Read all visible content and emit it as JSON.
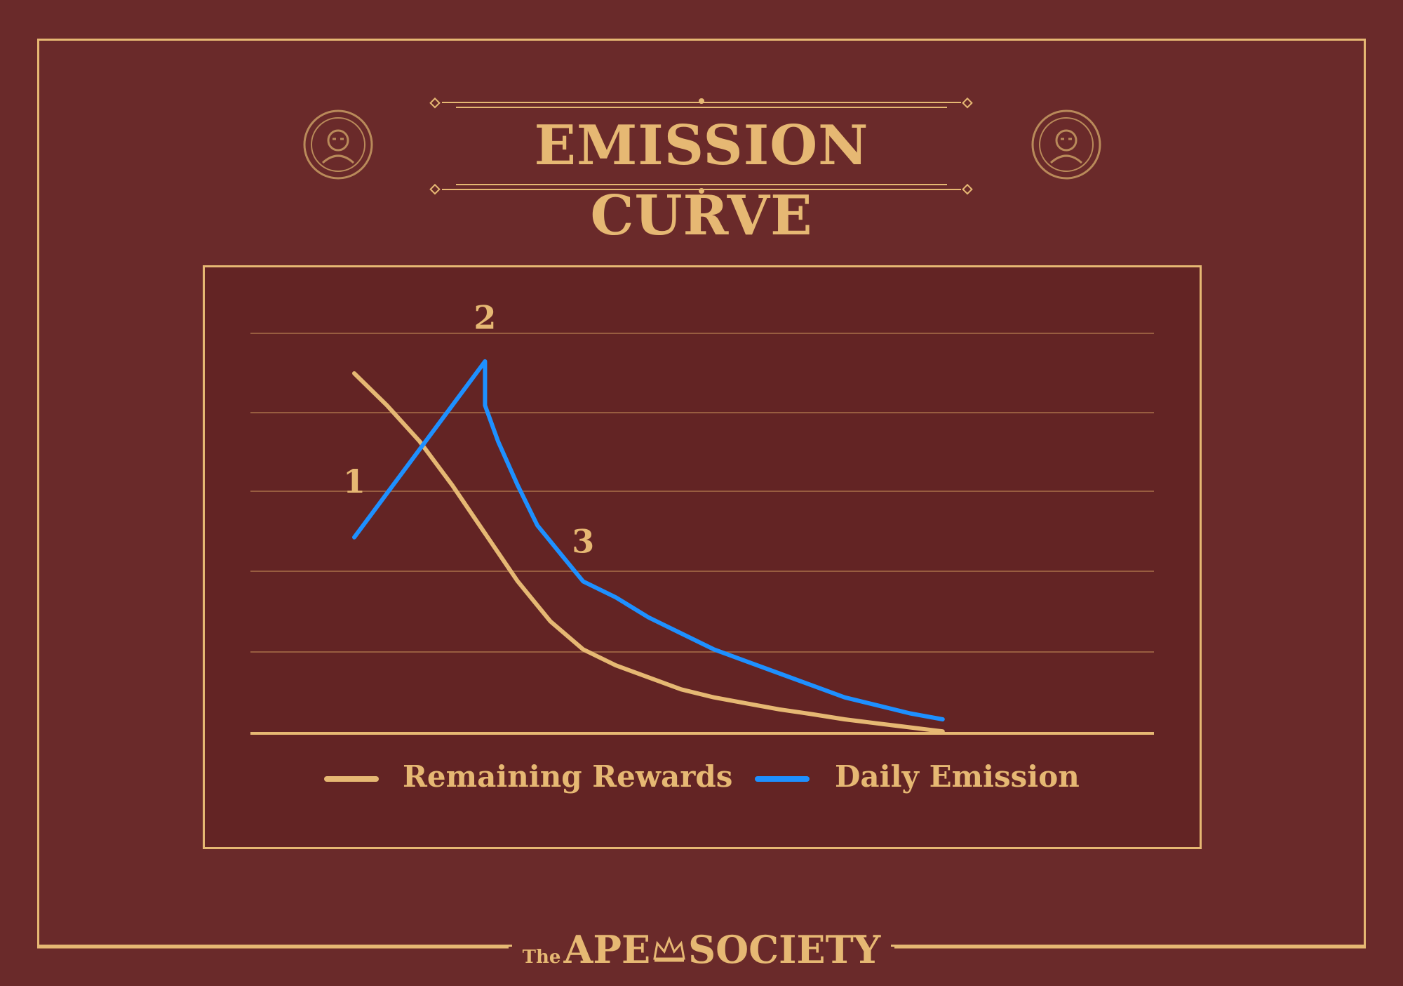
{
  "title": "EMISSION CURVE",
  "brand": {
    "prefix": "The",
    "left_word": "APE",
    "right_word": "SOCIETY"
  },
  "colors": {
    "background": "#6a2a2a",
    "panel": "#632424",
    "gold": "#e6b873",
    "blue": "#1e90ff"
  },
  "icons": {
    "medallion": "ape-medallion-icon",
    "crown": "crown-icon"
  },
  "chart_data": {
    "type": "line",
    "title": "EMISSION CURVE",
    "xlabel": "",
    "ylabel": "",
    "grid": true,
    "legend_placement": "bottom",
    "x_range": [
      0,
      100
    ],
    "y_range": [
      0,
      100
    ],
    "annotations": [
      {
        "text": "1",
        "x": 0,
        "y": 57
      },
      {
        "text": "2",
        "x": 20,
        "y": 98
      },
      {
        "text": "3",
        "x": 35,
        "y": 42
      }
    ],
    "series": [
      {
        "name": "Remaining Rewards",
        "color": "#e6b873",
        "points": [
          [
            0,
            90
          ],
          [
            5,
            82
          ],
          [
            10,
            73
          ],
          [
            15,
            62
          ],
          [
            20,
            50
          ],
          [
            25,
            38
          ],
          [
            30,
            28
          ],
          [
            35,
            21
          ],
          [
            40,
            17
          ],
          [
            45,
            14
          ],
          [
            50,
            11
          ],
          [
            55,
            9
          ],
          [
            60,
            7.5
          ],
          [
            65,
            6
          ],
          [
            70,
            4.8
          ],
          [
            75,
            3.5
          ],
          [
            80,
            2.5
          ],
          [
            85,
            1.5
          ],
          [
            90,
            0.5
          ]
        ]
      },
      {
        "name": "Daily Emission",
        "color": "#1e90ff",
        "points": [
          [
            0,
            49
          ],
          [
            20,
            93
          ],
          [
            20,
            82
          ],
          [
            22,
            73
          ],
          [
            25,
            62
          ],
          [
            28,
            52
          ],
          [
            32,
            44
          ],
          [
            35,
            38
          ],
          [
            40,
            34
          ],
          [
            45,
            29
          ],
          [
            50,
            25
          ],
          [
            55,
            21
          ],
          [
            60,
            18
          ],
          [
            65,
            15
          ],
          [
            70,
            12
          ],
          [
            75,
            9
          ],
          [
            80,
            7
          ],
          [
            85,
            5
          ],
          [
            90,
            3.5
          ]
        ]
      }
    ]
  }
}
